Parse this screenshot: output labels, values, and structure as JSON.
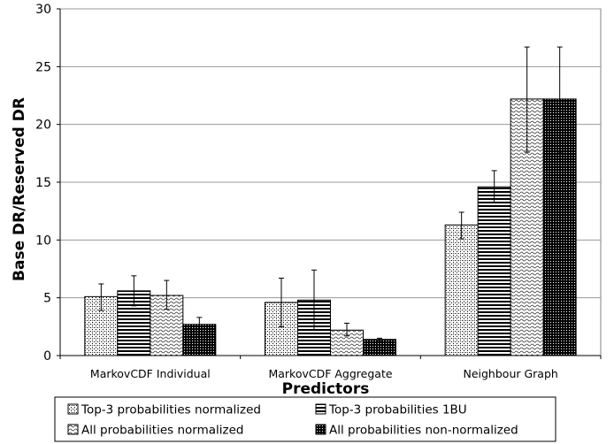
{
  "chart_data": {
    "type": "bar",
    "title": "",
    "xlabel": "Predictors",
    "ylabel": "Base DR/Reserved DR",
    "ylim": [
      0,
      30
    ],
    "yticks": [
      0,
      5,
      10,
      15,
      20,
      25,
      30
    ],
    "grid": true,
    "legend_position": "bottom",
    "categories": [
      "MarkovCDF Individual",
      "MarkovCDF Aggregate",
      "Neighbour Graph"
    ],
    "series": [
      {
        "name": "Top-3 probabilities normalized",
        "pattern": "vertical-dots",
        "values": [
          5.1,
          4.6,
          11.3
        ],
        "err_low": [
          3.9,
          2.5,
          10.1
        ],
        "err_high": [
          6.2,
          6.7,
          12.4
        ]
      },
      {
        "name": "Top-3 probabilities 1BU",
        "pattern": "horizontal-stripes",
        "values": [
          5.6,
          4.8,
          14.6
        ],
        "err_low": [
          4.3,
          2.2,
          13.2
        ],
        "err_high": [
          6.9,
          7.4,
          16.0
        ]
      },
      {
        "name": "All probabilities normalized",
        "pattern": "wave",
        "values": [
          5.2,
          2.2,
          22.2
        ],
        "err_low": [
          4.0,
          1.7,
          17.6
        ],
        "err_high": [
          6.5,
          2.8,
          26.7
        ]
      },
      {
        "name": "All probabilities non-normalized",
        "pattern": "dark-grid",
        "values": [
          2.7,
          1.4,
          22.2
        ],
        "err_low": [
          2.3,
          1.3,
          17.6
        ],
        "err_high": [
          3.3,
          1.5,
          26.7
        ]
      }
    ]
  }
}
